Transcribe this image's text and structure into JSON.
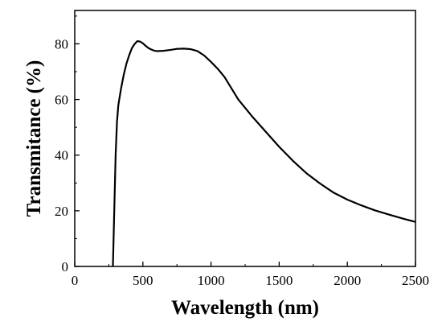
{
  "chart_data": {
    "type": "line",
    "title": "",
    "xlabel": "Wavelength (nm)",
    "ylabel": "Transmitance (%)",
    "xlim": [
      0,
      2500
    ],
    "ylim": [
      0,
      92
    ],
    "xticks": [
      0,
      500,
      1000,
      1500,
      2000,
      2500
    ],
    "yticks": [
      0,
      20,
      40,
      60,
      80
    ],
    "grid": false,
    "legend": "none",
    "series": [
      {
        "line_color": "#000000",
        "x": [
          280,
          290,
          300,
          310,
          320,
          340,
          360,
          380,
          400,
          420,
          440,
          460,
          480,
          500,
          520,
          540,
          560,
          580,
          600,
          650,
          700,
          750,
          800,
          850,
          900,
          950,
          1000,
          1050,
          1100,
          1150,
          1200,
          1250,
          1300,
          1400,
          1500,
          1600,
          1700,
          1800,
          1900,
          2000,
          2100,
          2200,
          2300,
          2400,
          2500
        ],
        "y": [
          0,
          20,
          40,
          52,
          58,
          64,
          69,
          73,
          76,
          78.5,
          80,
          81,
          80.8,
          80.2,
          79.3,
          78.5,
          78,
          77.6,
          77.4,
          77.5,
          77.8,
          78.2,
          78.3,
          78.1,
          77.4,
          75.8,
          73.5,
          71,
          68,
          64,
          60,
          57,
          54,
          48.5,
          43,
          38,
          33.5,
          29.8,
          26.5,
          24,
          22,
          20.2,
          18.7,
          17.3,
          16
        ]
      }
    ]
  }
}
